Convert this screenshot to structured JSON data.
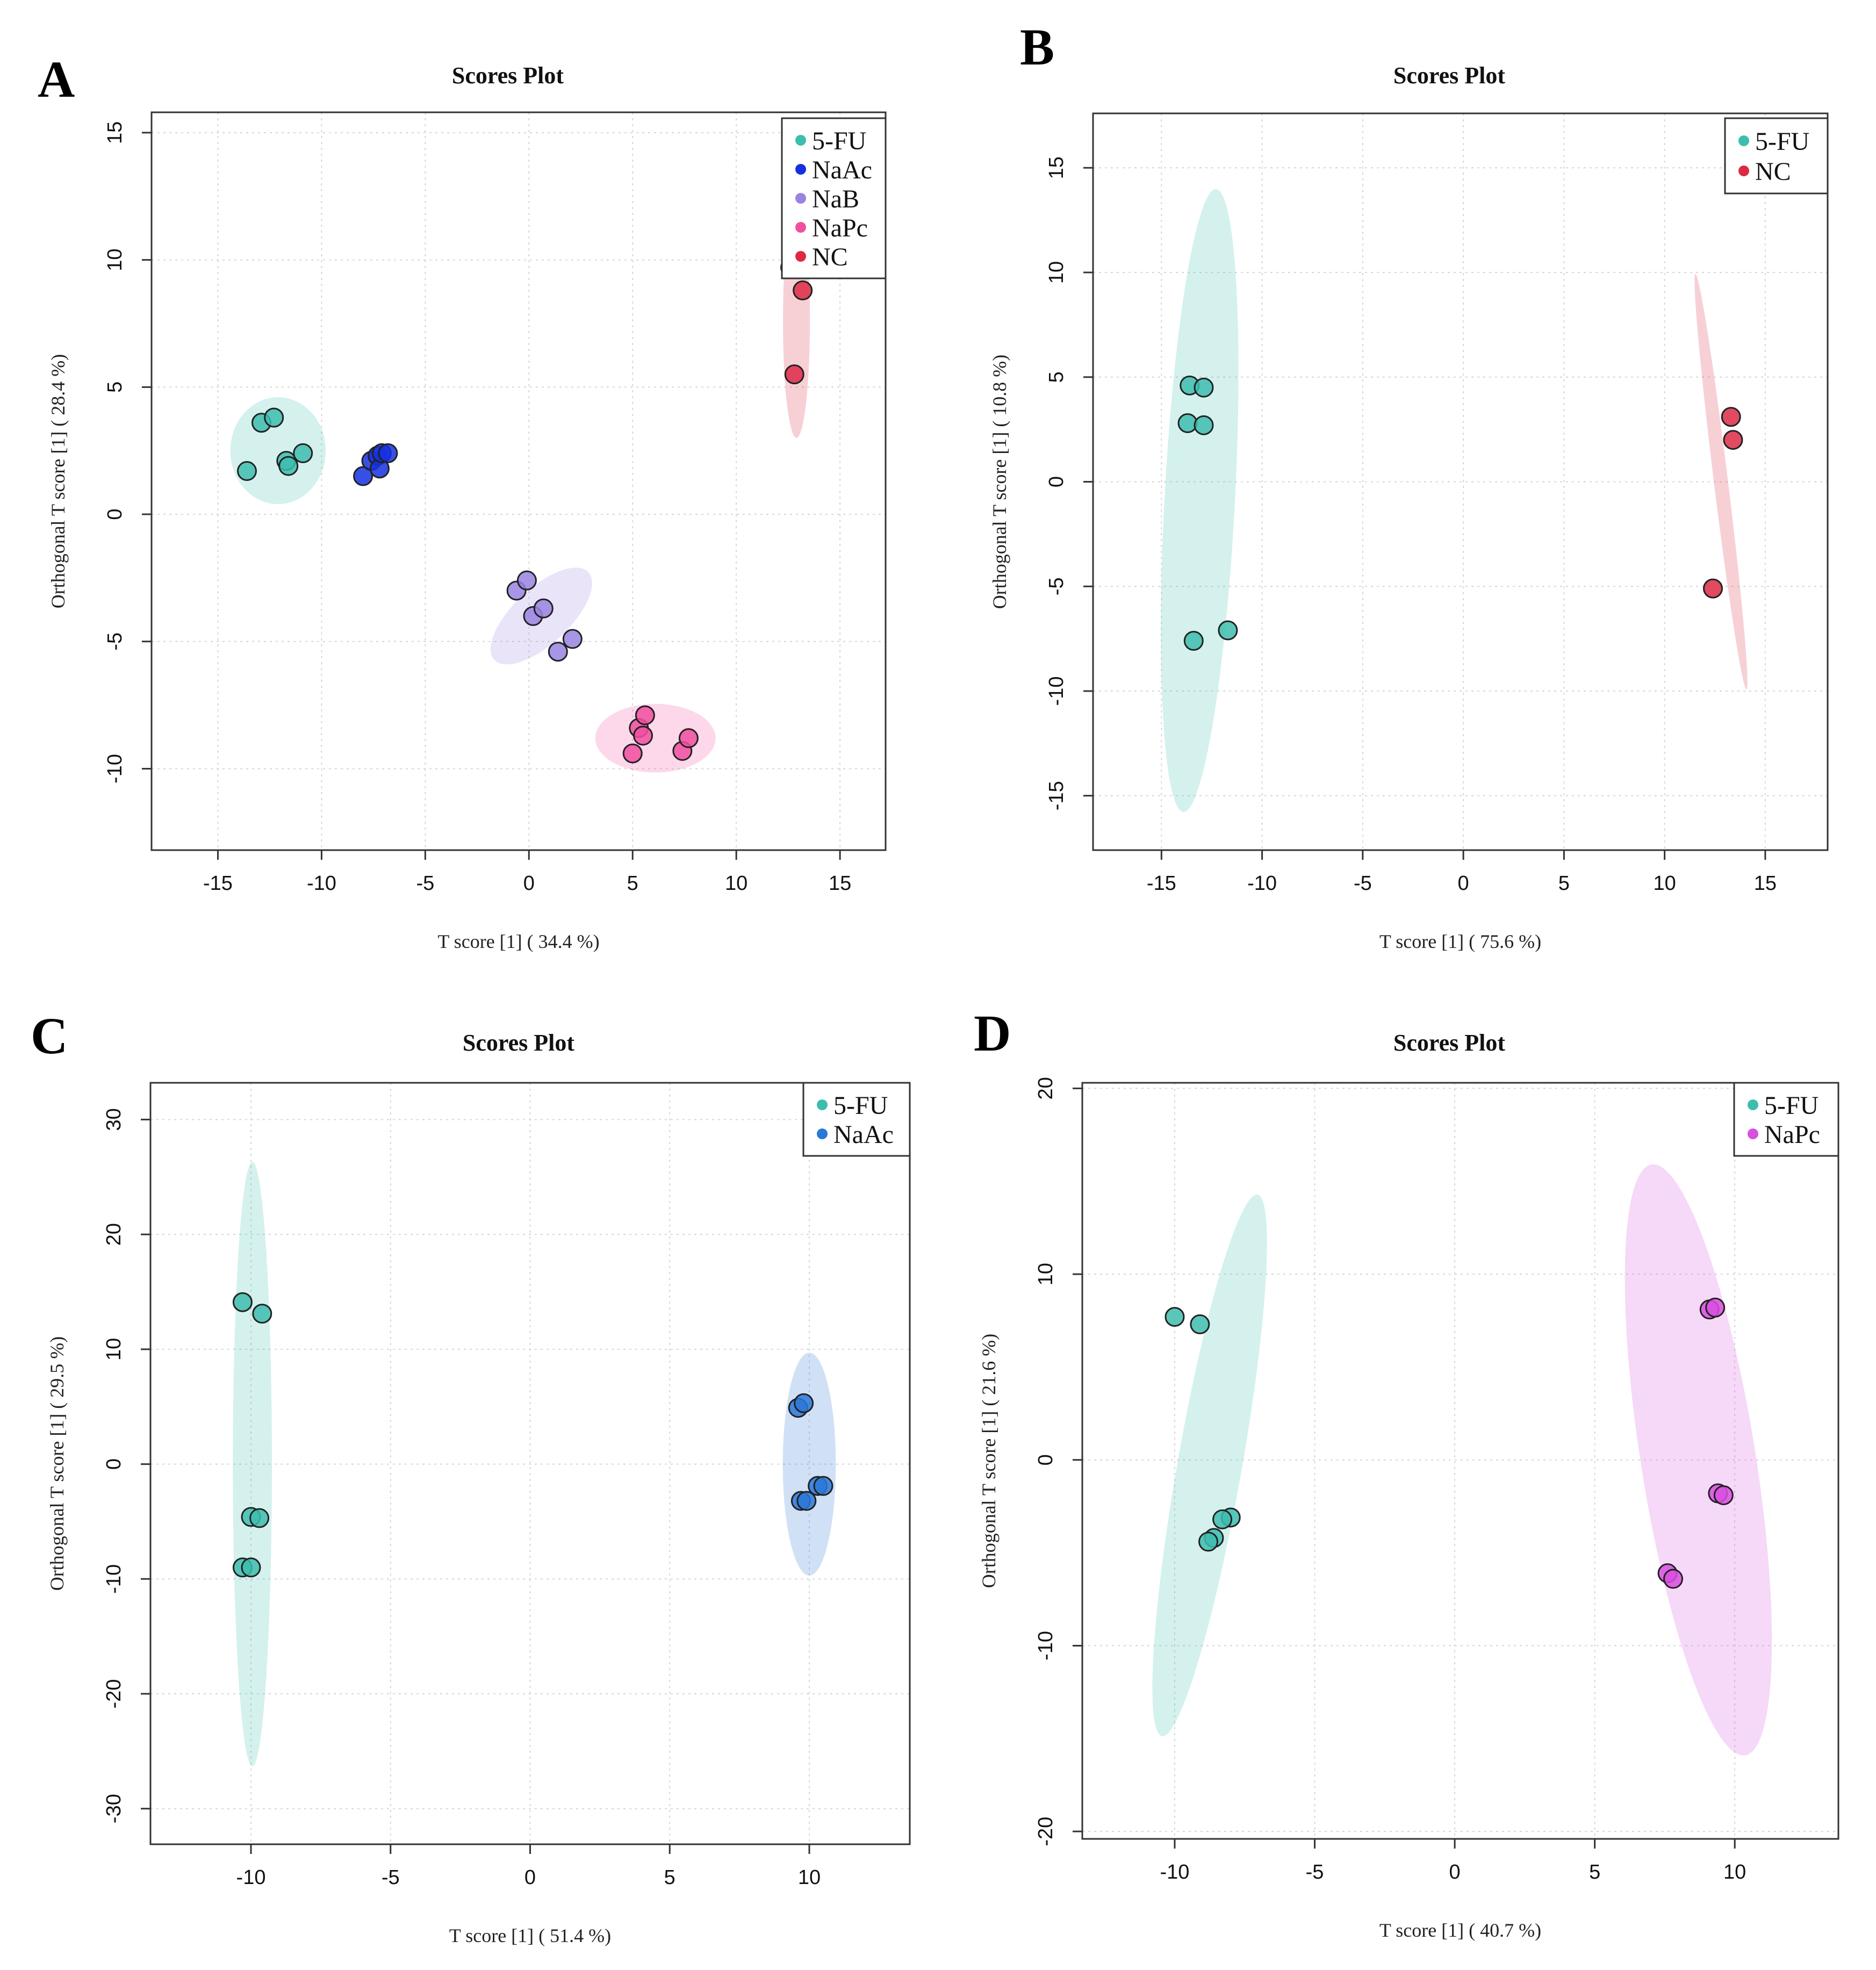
{
  "figure": {
    "panels": [
      {
        "label": "A",
        "title": "Scores Plot",
        "xlabel": "T score [1] ( 34.4 %)",
        "ylabel": "Orthogonal T score [1] ( 28.4 %)"
      },
      {
        "label": "B",
        "title": "Scores Plot",
        "xlabel": "T score [1] ( 75.6 %)",
        "ylabel": "Orthogonal T score [1] ( 10.8 %)"
      },
      {
        "label": "C",
        "title": "Scores Plot",
        "xlabel": "T score [1] ( 51.4 %)",
        "ylabel": "Orthogonal T score [1] ( 29.5 %)"
      },
      {
        "label": "D",
        "title": "Scores Plot",
        "xlabel": "T score [1] ( 40.7 %)",
        "ylabel": "Orthogonal T score [1] ( 21.6 %)"
      }
    ]
  },
  "chart_data": [
    {
      "id": "A",
      "type": "scatter",
      "title": "Scores Plot",
      "xlabel": "T score [1] ( 34.4 %)",
      "ylabel": "Orthogonal T score [1] ( 28.4 %)",
      "xlim": [
        -18.2,
        17.2
      ],
      "ylim": [
        -13.2,
        15.8
      ],
      "xticks": [
        -15,
        -10,
        -5,
        0,
        5,
        10,
        15
      ],
      "yticks": [
        -10,
        -5,
        0,
        5,
        10,
        15
      ],
      "grid": true,
      "legend_position": "top-right",
      "series": [
        {
          "name": "5-FU",
          "color": "#3dbdae",
          "points": [
            [
              -13.6,
              1.7
            ],
            [
              -12.9,
              3.6
            ],
            [
              -12.3,
              3.8
            ],
            [
              -11.7,
              2.1
            ],
            [
              -11.6,
              1.9
            ],
            [
              -10.9,
              2.4
            ]
          ],
          "ellipse": {
            "cx": -12.1,
            "cy": 2.5,
            "rx": 2.3,
            "ry": 2.1,
            "angle": 0
          }
        },
        {
          "name": "NaAc",
          "color": "#1530e0",
          "points": [
            [
              -8.0,
              1.5
            ],
            [
              -7.6,
              2.1
            ],
            [
              -7.3,
              2.3
            ],
            [
              -7.2,
              1.8
            ],
            [
              -7.1,
              2.4
            ],
            [
              -6.8,
              2.4
            ]
          ],
          "ellipse": null
        },
        {
          "name": "NaB",
          "color": "#9a82e0",
          "points": [
            [
              -0.6,
              -3.0
            ],
            [
              -0.1,
              -2.6
            ],
            [
              0.2,
              -4.0
            ],
            [
              0.7,
              -3.7
            ],
            [
              1.4,
              -5.4
            ],
            [
              2.1,
              -4.9
            ]
          ],
          "ellipse": {
            "cx": 0.6,
            "cy": -4.0,
            "rx": 3.1,
            "ry": 1.1,
            "angle": 43
          }
        },
        {
          "name": "NaPc",
          "color": "#f04fa0",
          "points": [
            [
              5.0,
              -9.4
            ],
            [
              5.3,
              -8.4
            ],
            [
              5.5,
              -8.7
            ],
            [
              5.6,
              -7.9
            ],
            [
              7.4,
              -9.3
            ],
            [
              7.7,
              -8.8
            ]
          ],
          "ellipse": {
            "cx": 6.1,
            "cy": -8.8,
            "rx": 2.9,
            "ry": 1.35,
            "angle": 0
          }
        },
        {
          "name": "NC",
          "color": "#dc2a45",
          "points": [
            [
              12.6,
              9.7
            ],
            [
              13.2,
              8.8
            ],
            [
              12.8,
              5.5
            ]
          ],
          "ellipse": {
            "cx": 12.9,
            "cy": 7.6,
            "rx": 0.65,
            "ry": 4.6,
            "angle": 0
          }
        }
      ]
    },
    {
      "id": "B",
      "type": "scatter",
      "title": "Scores Plot",
      "xlabel": "T score [1] ( 75.6 %)",
      "ylabel": "Orthogonal T score [1] ( 10.8 %)",
      "xlim": [
        -18.4,
        18.1
      ],
      "ylim": [
        -17.6,
        17.6
      ],
      "xticks": [
        -15,
        -10,
        -5,
        0,
        5,
        10,
        15
      ],
      "yticks": [
        -15,
        -10,
        -5,
        0,
        5,
        10,
        15
      ],
      "grid": true,
      "legend_position": "top-right",
      "series": [
        {
          "name": "5-FU",
          "color": "#3dbdae",
          "points": [
            [
              -13.6,
              4.6
            ],
            [
              -12.9,
              4.5
            ],
            [
              -13.7,
              2.8
            ],
            [
              -12.9,
              2.7
            ],
            [
              -13.4,
              -7.6
            ],
            [
              -11.7,
              -7.1
            ]
          ],
          "ellipse": {
            "cx": -13.1,
            "cy": -0.9,
            "rx": 1.75,
            "ry": 14.9,
            "angle": -3
          }
        },
        {
          "name": "NC",
          "color": "#dc2a45",
          "points": [
            [
              13.3,
              3.1
            ],
            [
              13.4,
              2.0
            ],
            [
              12.4,
              -5.1
            ]
          ],
          "ellipse": {
            "cx": 12.8,
            "cy": 0.0,
            "rx": 0.35,
            "ry": 10.0,
            "angle": 7
          }
        }
      ]
    },
    {
      "id": "C",
      "type": "scatter",
      "title": "Scores Plot",
      "xlabel": "T score [1] ( 51.4 %)",
      "ylabel": "Orthogonal T score [1] ( 29.5 %)",
      "xlim": [
        -13.6,
        13.6
      ],
      "ylim": [
        -33.1,
        33.2
      ],
      "xticks": [
        -10,
        -5,
        0,
        5,
        10
      ],
      "yticks": [
        -30,
        -20,
        -10,
        0,
        10,
        20,
        30
      ],
      "grid": true,
      "legend_position": "top-right",
      "series": [
        {
          "name": "5-FU",
          "color": "#3dbdae",
          "points": [
            [
              -10.3,
              14.1
            ],
            [
              -9.6,
              13.1
            ],
            [
              -10.0,
              -4.6
            ],
            [
              -9.7,
              -4.7
            ],
            [
              -10.3,
              -9.0
            ],
            [
              -10.0,
              -9.0
            ]
          ],
          "ellipse": {
            "cx": -9.95,
            "cy": 0.0,
            "rx": 0.7,
            "ry": 26.3,
            "angle": 0
          }
        },
        {
          "name": "NaAc",
          "color": "#2a78d8",
          "points": [
            [
              9.6,
              4.9
            ],
            [
              9.8,
              5.3
            ],
            [
              9.7,
              -3.2
            ],
            [
              9.9,
              -3.2
            ],
            [
              10.3,
              -1.9
            ],
            [
              10.5,
              -1.9
            ]
          ],
          "ellipse": {
            "cx": 10.0,
            "cy": 0.0,
            "rx": 0.95,
            "ry": 9.7,
            "angle": 0
          }
        }
      ]
    },
    {
      "id": "D",
      "type": "scatter",
      "title": "Scores Plot",
      "xlabel": "T score [1] ( 40.7 %)",
      "ylabel": "Orthogonal T score [1] ( 21.6 %)",
      "xlim": [
        -13.3,
        13.7
      ],
      "ylim": [
        -20.4,
        20.3
      ],
      "xticks": [
        -10,
        -5,
        0,
        5,
        10
      ],
      "yticks": [
        -20,
        -10,
        0,
        10,
        20
      ],
      "grid": true,
      "legend_position": "top-right",
      "series": [
        {
          "name": "5-FU",
          "color": "#3dbdae",
          "points": [
            [
              -10.0,
              7.7
            ],
            [
              -9.1,
              7.3
            ],
            [
              -8.0,
              -3.1
            ],
            [
              -8.3,
              -3.2
            ],
            [
              -8.6,
              -4.2
            ],
            [
              -8.8,
              -4.4
            ]
          ],
          "ellipse": {
            "cx": -8.75,
            "cy": -0.3,
            "rx": 1.15,
            "ry": 14.8,
            "angle": -10
          }
        },
        {
          "name": "NaPc",
          "color": "#d84fe0",
          "points": [
            [
              9.1,
              8.1
            ],
            [
              9.3,
              8.2
            ],
            [
              9.4,
              -1.8
            ],
            [
              9.6,
              -1.9
            ],
            [
              7.6,
              -6.1
            ],
            [
              7.8,
              -6.4
            ]
          ],
          "ellipse": {
            "cx": 8.7,
            "cy": 0.0,
            "rx": 2.05,
            "ry": 16.1,
            "angle": 9
          }
        }
      ]
    }
  ]
}
